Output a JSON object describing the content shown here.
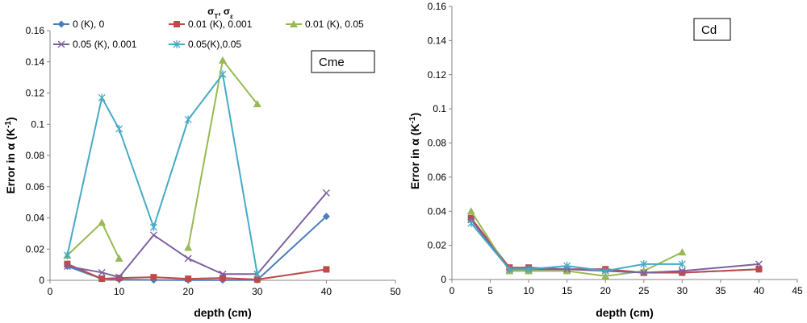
{
  "legend_title": "σT, σε",
  "chart_data": [
    {
      "type": "line",
      "panel_label": "Cme",
      "xlabel": "depth (cm)",
      "ylabel": "Error in α  (K-1)",
      "xlim": [
        0,
        50
      ],
      "ylim": [
        0,
        0.16
      ],
      "xticks": [
        0,
        10,
        20,
        30,
        40,
        50
      ],
      "yticks": [
        0,
        0.02,
        0.04,
        0.06,
        0.08,
        0.1,
        0.12,
        0.14,
        0.16
      ],
      "grid": false,
      "legend": "top",
      "series": [
        {
          "name": "0 (K), 0",
          "color": "#4a7ebb",
          "marker": "diamond",
          "segments": [
            [
              [
                2.5,
                0.009
              ],
              [
                7.5,
                0.001
              ],
              [
                10,
                0.0005
              ],
              [
                15,
                0.0002
              ],
              [
                20,
                0.0001
              ],
              [
                25,
                0.0001
              ],
              [
                30,
                0.0002
              ],
              [
                40,
                0.041
              ]
            ]
          ]
        },
        {
          "name": "0.01 (K), 0.001",
          "color": "#be4b48",
          "marker": "square",
          "segments": [
            [
              [
                2.5,
                0.0105
              ],
              [
                7.5,
                0.001
              ],
              [
                10,
                0.0015
              ],
              [
                15,
                0.002
              ],
              [
                20,
                0.001
              ],
              [
                25,
                0.0015
              ],
              [
                30,
                0.0005
              ],
              [
                40,
                0.007
              ]
            ]
          ]
        },
        {
          "name": "0.01 (K), 0.05",
          "color": "#98b954",
          "marker": "triangle",
          "segments": [
            [
              [
                2.5,
                0.016
              ],
              [
                7.5,
                0.037
              ],
              [
                10,
                0.014
              ]
            ],
            [
              [
                20,
                0.021
              ],
              [
                25,
                0.141
              ],
              [
                30,
                0.113
              ]
            ]
          ]
        },
        {
          "name": "0.05 (K), 0.001",
          "color": "#7d60a0",
          "marker": "x",
          "segments": [
            [
              [
                2.5,
                0.009
              ],
              [
                7.5,
                0.005
              ],
              [
                10,
                0.002
              ],
              [
                15,
                0.029
              ],
              [
                20,
                0.014
              ],
              [
                25,
                0.004
              ],
              [
                30,
                0.004
              ],
              [
                40,
                0.056
              ]
            ]
          ]
        },
        {
          "name": "0.05(K),0.05",
          "color": "#46aac5",
          "marker": "star",
          "segments": [
            [
              [
                2.5,
                0.016
              ],
              [
                7.5,
                0.117
              ],
              [
                10,
                0.097
              ],
              [
                15,
                0.034
              ],
              [
                20,
                0.103
              ],
              [
                25,
                0.132
              ],
              [
                30,
                0.004
              ]
            ]
          ]
        }
      ]
    },
    {
      "type": "line",
      "panel_label": "Cd",
      "xlabel": "depth (cm)",
      "ylabel": "Error in α  (K-1)",
      "xlim": [
        0,
        45
      ],
      "ylim": [
        0,
        0.16
      ],
      "xticks": [
        0,
        5,
        10,
        15,
        20,
        25,
        30,
        35,
        40,
        45
      ],
      "yticks": [
        0,
        0.02,
        0.04,
        0.06,
        0.08,
        0.1,
        0.12,
        0.14,
        0.16
      ],
      "grid": false,
      "series": [
        {
          "name": "0 (K), 0",
          "color": "#4a7ebb",
          "marker": "diamond",
          "segments": [
            [
              [
                2.5,
                0.035
              ],
              [
                7.5,
                0.006
              ],
              [
                10,
                0.006
              ],
              [
                15,
                0.006
              ],
              [
                20,
                0.006
              ],
              [
                25,
                0.004
              ],
              [
                30,
                0.004
              ],
              [
                40,
                0.006
              ]
            ]
          ]
        },
        {
          "name": "0.01 (K), 0.001",
          "color": "#be4b48",
          "marker": "square",
          "segments": [
            [
              [
                2.5,
                0.036
              ],
              [
                7.5,
                0.007
              ],
              [
                10,
                0.007
              ],
              [
                15,
                0.006
              ],
              [
                20,
                0.006
              ],
              [
                25,
                0.004
              ],
              [
                30,
                0.004
              ],
              [
                40,
                0.006
              ]
            ]
          ]
        },
        {
          "name": "0.01 (K), 0.05",
          "color": "#98b954",
          "marker": "triangle",
          "segments": [
            [
              [
                2.5,
                0.04
              ],
              [
                7.5,
                0.005
              ],
              [
                10,
                0.005
              ],
              [
                15,
                0.005
              ],
              [
                20,
                0.002
              ],
              [
                25,
                0.005
              ],
              [
                30,
                0.016
              ]
            ]
          ]
        },
        {
          "name": "0.05 (K), 0.001",
          "color": "#7d60a0",
          "marker": "x",
          "segments": [
            [
              [
                2.5,
                0.035
              ],
              [
                7.5,
                0.006
              ],
              [
                10,
                0.006
              ],
              [
                15,
                0.006
              ],
              [
                20,
                0.005
              ],
              [
                25,
                0.004
              ],
              [
                30,
                0.005
              ],
              [
                40,
                0.009
              ]
            ]
          ]
        },
        {
          "name": "0.05(K),0.05",
          "color": "#46aac5",
          "marker": "star",
          "segments": [
            [
              [
                2.5,
                0.033
              ],
              [
                7.5,
                0.006
              ],
              [
                10,
                0.006
              ],
              [
                15,
                0.008
              ],
              [
                20,
                0.005
              ],
              [
                25,
                0.009
              ],
              [
                30,
                0.009
              ]
            ]
          ]
        }
      ]
    }
  ]
}
